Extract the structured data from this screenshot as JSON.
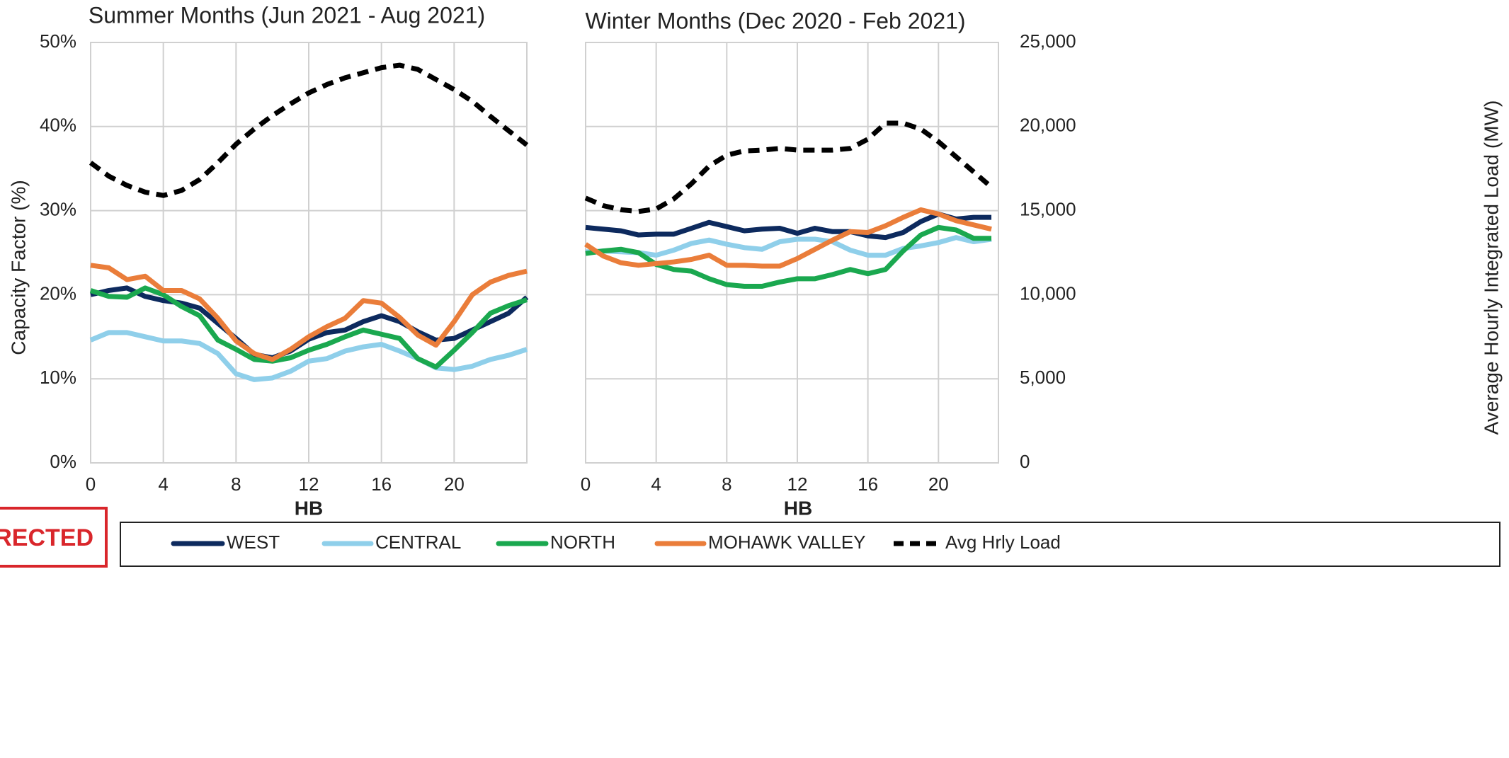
{
  "chart_data": [
    {
      "type": "line",
      "title": "Summer Months (Jun 2021 - Aug 2021)",
      "x_label": "HB",
      "y_label": "Capacity Factor (%)",
      "x": [
        0,
        1,
        2,
        3,
        4,
        5,
        6,
        7,
        8,
        9,
        10,
        11,
        12,
        13,
        14,
        15,
        16,
        17,
        18,
        19,
        20,
        21,
        22,
        23,
        24
      ],
      "xlim": [
        0,
        24
      ],
      "xticks": [
        0,
        4,
        8,
        12,
        16,
        20
      ],
      "ylim": [
        0,
        50
      ],
      "yticks": [
        {
          "value": 0,
          "label": "0%"
        },
        {
          "value": 10,
          "label": "10%"
        },
        {
          "value": 20,
          "label": "20%"
        },
        {
          "value": 30,
          "label": "30%"
        },
        {
          "value": 40,
          "label": "40%"
        },
        {
          "value": 50,
          "label": "50%"
        }
      ],
      "y2lim": [
        0,
        25000
      ],
      "grid": true,
      "series": [
        {
          "name": "WEST",
          "color": "#0d2a5e",
          "values": [
            20,
            20.5,
            20.8,
            19.8,
            19.3,
            19,
            18.4,
            16.6,
            14.8,
            12.9,
            12.5,
            13.3,
            14.7,
            15.5,
            15.8,
            16.8,
            17.5,
            16.8,
            15.6,
            14.6,
            14.8,
            15.8,
            16.8,
            17.8,
            19.7
          ]
        },
        {
          "name": "CENTRAL",
          "color": "#8fcfea",
          "values": [
            14.6,
            15.5,
            15.5,
            15,
            14.5,
            14.5,
            14.2,
            13,
            10.6,
            9.9,
            10.1,
            10.9,
            12.1,
            12.4,
            13.3,
            13.8,
            14.1,
            13.3,
            12.4,
            11.3,
            11.1,
            11.5,
            12.3,
            12.8,
            13.5
          ]
        },
        {
          "name": "NORTH",
          "color": "#1aa84f",
          "values": [
            20.5,
            19.8,
            19.7,
            20.8,
            20,
            18.6,
            17.5,
            14.6,
            13.5,
            12.3,
            12.1,
            12.5,
            13.4,
            14.1,
            15,
            15.8,
            15.3,
            14.8,
            12.4,
            11.4,
            13.4,
            15.5,
            17.8,
            18.7,
            19.4
          ]
        },
        {
          "name": "MOHAWK VALLEY",
          "color": "#ea7d3a",
          "values": [
            23.5,
            23.2,
            21.8,
            22.2,
            20.5,
            20.5,
            19.5,
            17.2,
            14.5,
            13,
            12.3,
            13.5,
            15,
            16.2,
            17.2,
            19.3,
            19,
            17.3,
            15.2,
            14,
            16.8,
            20,
            21.5,
            22.3,
            22.8
          ]
        },
        {
          "name": "Avg Hrly Load",
          "color": "#000000",
          "line_style": "dashed",
          "axis": "y2",
          "values": [
            17850,
            17050,
            16500,
            16100,
            15900,
            16200,
            16850,
            17850,
            18950,
            19850,
            20650,
            21350,
            22000,
            22500,
            22900,
            23200,
            23500,
            23650,
            23400,
            22800,
            22200,
            21500,
            20600,
            19750,
            18900
          ]
        }
      ]
    },
    {
      "type": "line",
      "title": "Winter Months (Dec 2020 - Feb 2021)",
      "x_label": "HB",
      "y2_label": "Average Hourly Integrated Load (MW)",
      "x": [
        0,
        1,
        2,
        3,
        4,
        5,
        6,
        7,
        8,
        9,
        10,
        11,
        12,
        13,
        14,
        15,
        16,
        17,
        18,
        19,
        20,
        21,
        22,
        23
      ],
      "xlim": [
        0,
        23.4
      ],
      "xticks": [
        0,
        4,
        8,
        12,
        16,
        20
      ],
      "ylim": [
        0,
        50
      ],
      "y2lim": [
        0,
        25000
      ],
      "y2ticks": [
        0,
        {
          "value": 5000,
          "label": "5,000"
        },
        {
          "value": 10000,
          "label": "10,000"
        },
        {
          "value": 15000,
          "label": "15,000"
        },
        {
          "value": 20000,
          "label": "20,000"
        },
        {
          "value": 25000,
          "label": "25,000"
        }
      ],
      "grid": true,
      "series": [
        {
          "name": "WEST",
          "color": "#0d2a5e",
          "values": [
            28,
            27.8,
            27.6,
            27.1,
            27.2,
            27.2,
            27.9,
            28.6,
            28.1,
            27.6,
            27.8,
            27.9,
            27.3,
            27.9,
            27.5,
            27.5,
            27,
            26.8,
            27.4,
            28.7,
            29.6,
            29,
            29.2,
            29.2
          ]
        },
        {
          "name": "CENTRAL",
          "color": "#8fcfea",
          "values": [
            25.1,
            25.2,
            25.1,
            25,
            24.7,
            25.3,
            26.1,
            26.5,
            26,
            25.6,
            25.4,
            26.3,
            26.6,
            26.6,
            26.3,
            25.3,
            24.7,
            24.7,
            25.5,
            25.8,
            26.2,
            26.8,
            26.3,
            26.6
          ]
        },
        {
          "name": "NORTH",
          "color": "#1aa84f",
          "values": [
            24.9,
            25.2,
            25.4,
            25,
            23.6,
            23,
            22.8,
            21.9,
            21.2,
            21,
            21,
            21.5,
            21.9,
            21.9,
            22.4,
            23,
            22.5,
            23,
            25.2,
            27.1,
            28,
            27.7,
            26.7,
            26.7
          ]
        },
        {
          "name": "MOHAWK VALLEY",
          "color": "#ea7d3a",
          "values": [
            26,
            24.6,
            23.8,
            23.5,
            23.7,
            23.9,
            24.2,
            24.7,
            23.5,
            23.5,
            23.4,
            23.4,
            24.3,
            25.4,
            26.5,
            27.5,
            27.4,
            28.2,
            29.2,
            30.1,
            29.6,
            28.8,
            28.3,
            27.8
          ]
        },
        {
          "name": "Avg Hrly Load",
          "color": "#000000",
          "line_style": "dashed",
          "axis": "y2",
          "values": [
            15750,
            15300,
            15050,
            14950,
            15100,
            15700,
            16600,
            17650,
            18300,
            18550,
            18600,
            18700,
            18600,
            18600,
            18600,
            18700,
            19250,
            20200,
            20200,
            19850,
            19100,
            18200,
            17300,
            16400
          ]
        }
      ]
    }
  ],
  "stamp": "RRECTED"
}
